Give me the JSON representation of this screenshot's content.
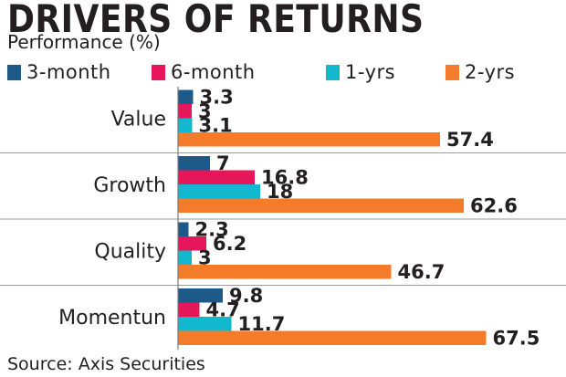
{
  "chart_data": {
    "type": "bar",
    "orientation": "horizontal",
    "title": "DRIVERS OF RETURNS",
    "subtitle": "Performance (%)",
    "source": "Source: Axis Securities",
    "categories": [
      "Value",
      "Growth",
      "Quality",
      "Momentun"
    ],
    "series": [
      {
        "name": "3-month",
        "color": "#1d5a8a",
        "values": [
          3.3,
          7,
          2.3,
          9.8
        ]
      },
      {
        "name": "6-month",
        "color": "#e5175a",
        "values": [
          3,
          16.8,
          6.2,
          4.7
        ]
      },
      {
        "name": "1-yrs",
        "color": "#12b9ce",
        "values": [
          3.1,
          18,
          3,
          11.7
        ]
      },
      {
        "name": "2-yrs",
        "color": "#f47b2a",
        "values": [
          57.4,
          62.6,
          46.7,
          67.5
        ]
      }
    ],
    "data_labels": [
      [
        "3.3",
        "3",
        "3.1",
        "57.4"
      ],
      [
        "7",
        "16.8",
        "18",
        "62.6"
      ],
      [
        "2.3",
        "6.2",
        "3",
        "46.7"
      ],
      [
        "9.8",
        "4.7",
        "11.7",
        "67.5"
      ]
    ],
    "legend_position": "top-left",
    "grid": false
  }
}
